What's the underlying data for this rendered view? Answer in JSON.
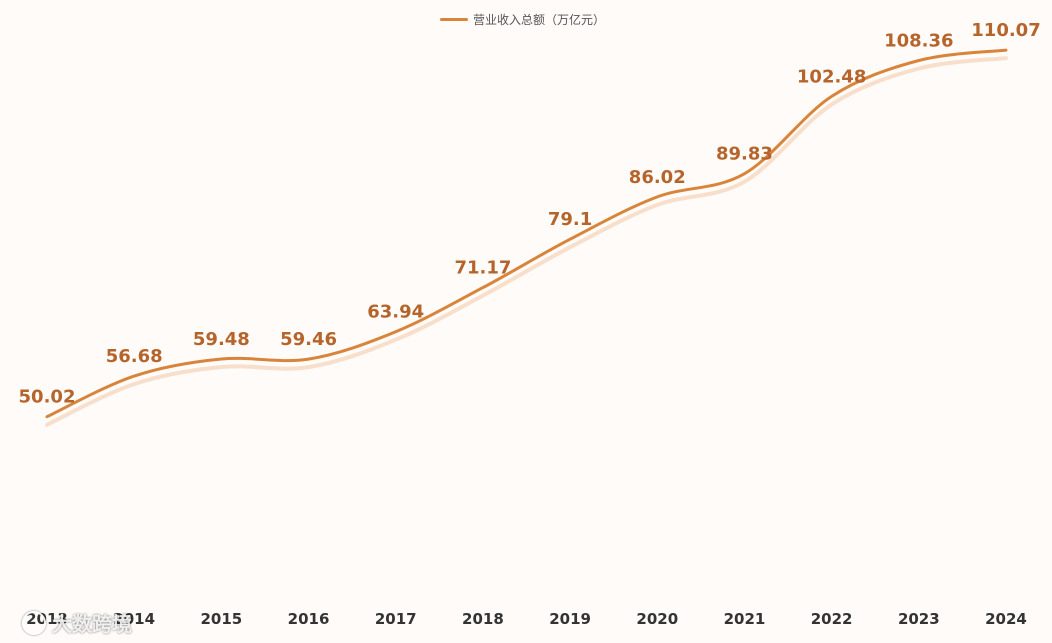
{
  "chart_data": {
    "type": "line",
    "title": "",
    "xlabel": "",
    "ylabel": "",
    "categories": [
      "2013",
      "2014",
      "2015",
      "2016",
      "2017",
      "2018",
      "2019",
      "2020",
      "2021",
      "2022",
      "2023",
      "2024"
    ],
    "series": [
      {
        "name": "营业收入总额（万亿元）",
        "values": [
          50.02,
          56.68,
          59.48,
          59.46,
          63.94,
          71.17,
          79.1,
          86.02,
          89.83,
          102.48,
          108.36,
          110.07
        ],
        "labels": [
          "50.02",
          "56.68",
          "59.48",
          "59.46",
          "63.94",
          "71.17",
          "79.1",
          "86.02",
          "89.83",
          "102.48",
          "108.36",
          "110.07"
        ],
        "color": "#d8843a"
      }
    ],
    "ylim": [
      20,
      115
    ],
    "grid": false,
    "legend_position": "top-center",
    "smooth": true
  },
  "colors": {
    "line": "#d8843a",
    "label": "#b5652b",
    "shadow": "#f2c9a6",
    "background": "#fefbf8"
  },
  "watermark": {
    "text": "大数跨境",
    "icon": "circle-logo-icon"
  }
}
